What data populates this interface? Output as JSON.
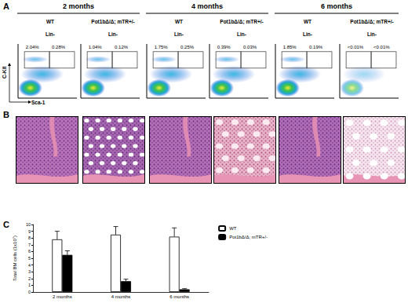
{
  "figure": {
    "panel_a": {
      "letter": "A",
      "timepoints": [
        "2 months",
        "4 months",
        "6 months"
      ],
      "gate_label": "Lin-",
      "y_axis_label": "C-Kit",
      "x_axis_label": "Sca-1",
      "plots": [
        {
          "genotype": "WT",
          "gates": [
            "2.04%",
            "0.28%"
          ]
        },
        {
          "genotype": "Pot1bΔ/Δ; mTR+/-",
          "gates": [
            "1.04%",
            "0.12%"
          ]
        },
        {
          "genotype": "WT",
          "gates": [
            "1.75%",
            "0.25%"
          ]
        },
        {
          "genotype": "Pot1bΔ/Δ; mTR+/-",
          "gates": [
            "0.39%",
            "0.03%"
          ]
        },
        {
          "genotype": "WT",
          "gates": [
            "1.85%",
            "0.19%"
          ]
        },
        {
          "genotype": "Pot1bΔ/Δ; mTR+/-",
          "gates": [
            "<0.01%",
            "<0.01%"
          ]
        }
      ]
    },
    "panel_b": {
      "letter": "B"
    },
    "panel_c": {
      "letter": "C"
    }
  },
  "chart_data": {
    "type": "bar",
    "categories": [
      "2 months",
      "4 months",
      "6 months"
    ],
    "series": [
      {
        "name": "WT",
        "color": "#ffffff",
        "values": [
          7.8,
          8.5,
          8.2
        ],
        "errors": [
          1.2,
          1.2,
          1.3
        ]
      },
      {
        "name": "Pot1bΔ/Δ; mTR+/-",
        "color": "#000000",
        "values": [
          5.5,
          1.6,
          0.4
        ],
        "errors": [
          0.6,
          0.3,
          0.1
        ]
      }
    ],
    "y_label": "Total BM cells (1x10⁷)",
    "ylim": [
      0,
      10
    ],
    "yticks": [
      0,
      1,
      2,
      3,
      4,
      5,
      6,
      7,
      8,
      9,
      10
    ],
    "legend": "top-right",
    "grid": false
  }
}
